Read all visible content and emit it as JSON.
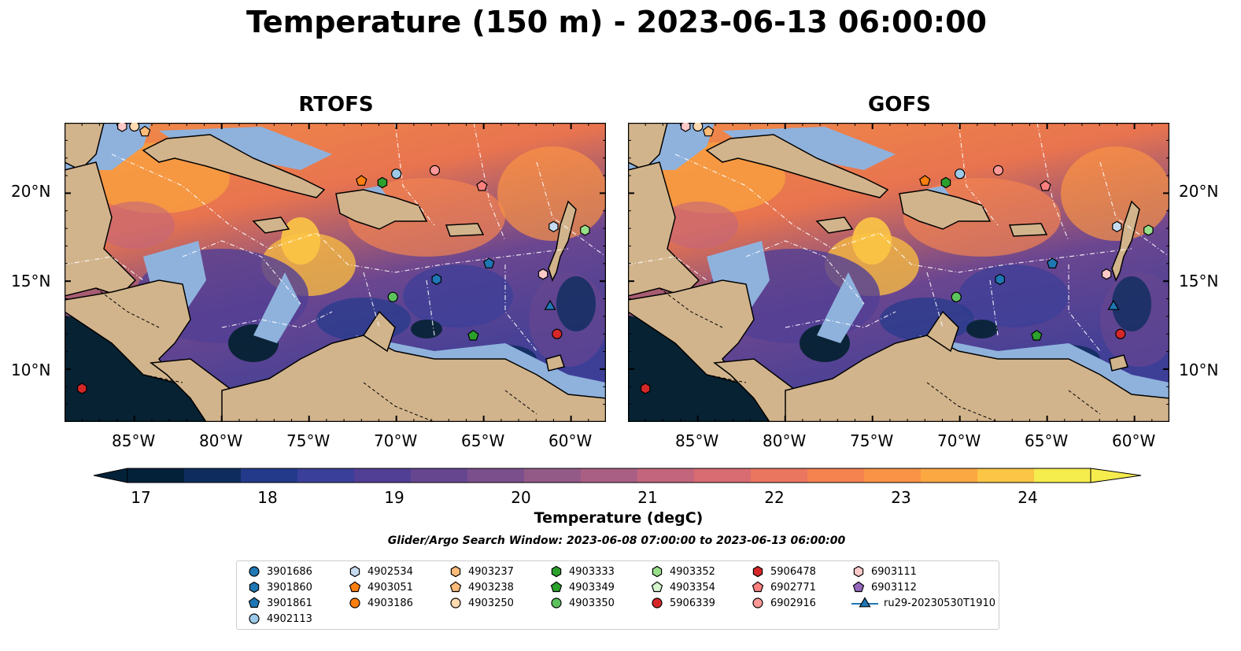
{
  "title": "Temperature (150 m) - 2023-06-13 06:00:00",
  "panels": [
    {
      "title": "RTOFS"
    },
    {
      "title": "GOFS"
    }
  ],
  "axes": {
    "x_ticks": [
      "85°W",
      "80°W",
      "75°W",
      "70°W",
      "65°W",
      "60°W"
    ],
    "y_ticks": [
      "20°N",
      "15°N",
      "10°N"
    ],
    "lon_range": [
      -89,
      -58
    ],
    "lat_range": [
      7,
      24
    ]
  },
  "colorbar": {
    "label": "Temperature (degC)",
    "ticks": [
      "17",
      "18",
      "19",
      "20",
      "21",
      "22",
      "23",
      "24"
    ],
    "range": [
      16.75,
      24.5
    ],
    "colors": [
      "#03223a",
      "#0e2d5e",
      "#233a8b",
      "#3a3f99",
      "#513f95",
      "#674690",
      "#7b4f8c",
      "#935a88",
      "#a95f83",
      "#c3657c",
      "#d86c72",
      "#ea7660",
      "#f48350",
      "#fa9345",
      "#fca842",
      "#fcc545",
      "#f5ec4e"
    ]
  },
  "search_window": "Glider/Argo Search Window: 2023-06-08 07:00:00 to 2023-06-13 06:00:00",
  "legend": [
    {
      "label": "3901686",
      "marker": "circle",
      "color": "#1f77b4"
    },
    {
      "label": "3901860",
      "marker": "hexagon",
      "color": "#1f77b4"
    },
    {
      "label": "3901861",
      "marker": "pentagon",
      "color": "#1f77b4"
    },
    {
      "label": "4902113",
      "marker": "circle",
      "color": "#9ecae9"
    },
    {
      "label": "4902534",
      "marker": "hexagon",
      "color": "#c6dbef"
    },
    {
      "label": "4903051",
      "marker": "pentagon",
      "color": "#ff7f0e"
    },
    {
      "label": "4903186",
      "marker": "circle",
      "color": "#ff7f0e"
    },
    {
      "label": "4903237",
      "marker": "hexagon",
      "color": "#ffbb78"
    },
    {
      "label": "4903238",
      "marker": "pentagon",
      "color": "#ffbb78"
    },
    {
      "label": "4903250",
      "marker": "circle",
      "color": "#ffdab0"
    },
    {
      "label": "4903333",
      "marker": "hexagon",
      "color": "#2ca02c"
    },
    {
      "label": "4903349",
      "marker": "pentagon",
      "color": "#2ca02c"
    },
    {
      "label": "4903350",
      "marker": "circle",
      "color": "#5dc25d"
    },
    {
      "label": "4903352",
      "marker": "hexagon",
      "color": "#98df8a"
    },
    {
      "label": "4903354",
      "marker": "pentagon",
      "color": "#d5f5cc"
    },
    {
      "label": "5906339",
      "marker": "circle",
      "color": "#d62728"
    },
    {
      "label": "5906478",
      "marker": "hexagon",
      "color": "#d62728"
    },
    {
      "label": "6902771",
      "marker": "pentagon",
      "color": "#ff7f7f"
    },
    {
      "label": "6902916",
      "marker": "circle",
      "color": "#ff9896"
    },
    {
      "label": "6903111",
      "marker": "hexagon",
      "color": "#ffc9c8"
    },
    {
      "label": "6903112",
      "marker": "pentagon",
      "color": "#9467bd"
    },
    {
      "label": "ru29-20230530T1910",
      "marker": "triangle-line",
      "color": "#1f77b4"
    }
  ],
  "markers": [
    {
      "id": "6903111",
      "shape": "hexagon",
      "color": "#ffc9c8",
      "lon": -85.7,
      "lat": 23.8
    },
    {
      "id": "4903250",
      "shape": "circle",
      "color": "#ffdab0",
      "lon": -85.0,
      "lat": 23.8
    },
    {
      "id": "4903238",
      "shape": "pentagon",
      "color": "#ffbb78",
      "lon": -84.4,
      "lat": 23.5
    },
    {
      "id": "4902113",
      "shape": "circle",
      "color": "#9ecae9",
      "lon": -70.0,
      "lat": 21.1
    },
    {
      "id": "6902916",
      "shape": "circle",
      "color": "#ff9896",
      "lon": -67.8,
      "lat": 21.3
    },
    {
      "id": "4903051",
      "shape": "pentagon",
      "color": "#ff7f0e",
      "lon": -72.0,
      "lat": 20.7
    },
    {
      "id": "4903333",
      "shape": "hexagon",
      "color": "#2ca02c",
      "lon": -70.8,
      "lat": 20.6
    },
    {
      "id": "6902771",
      "shape": "pentagon",
      "color": "#ff7f7f",
      "lon": -65.1,
      "lat": 20.4
    },
    {
      "id": "4902534",
      "shape": "hexagon",
      "color": "#c6dbef",
      "lon": -61.0,
      "lat": 18.1
    },
    {
      "id": "4903352",
      "shape": "hexagon",
      "color": "#98df8a",
      "lon": -59.2,
      "lat": 17.9
    },
    {
      "id": "3901861",
      "shape": "pentagon",
      "color": "#1f77b4",
      "lon": -64.7,
      "lat": 16.0
    },
    {
      "id": "3901860",
      "shape": "hexagon",
      "color": "#1f77b4",
      "lon": -67.7,
      "lat": 15.1
    },
    {
      "id": "6903111",
      "shape": "hexagon",
      "color": "#ffc9c8",
      "lon": -61.6,
      "lat": 15.4
    },
    {
      "id": "4903350",
      "shape": "circle",
      "color": "#5dc25d",
      "lon": -70.2,
      "lat": 14.1
    },
    {
      "id": "ru29-20230530T1910",
      "shape": "triangle",
      "color": "#1f77b4",
      "lon": -61.2,
      "lat": 13.6
    },
    {
      "id": "4903349",
      "shape": "pentagon",
      "color": "#2ca02c",
      "lon": -65.6,
      "lat": 11.9
    },
    {
      "id": "5906339",
      "shape": "circle",
      "color": "#d62728",
      "lon": -60.8,
      "lat": 12.0
    },
    {
      "id": "5906478",
      "shape": "hexagon",
      "color": "#d62728",
      "lon": -88.0,
      "lat": 8.9
    }
  ]
}
